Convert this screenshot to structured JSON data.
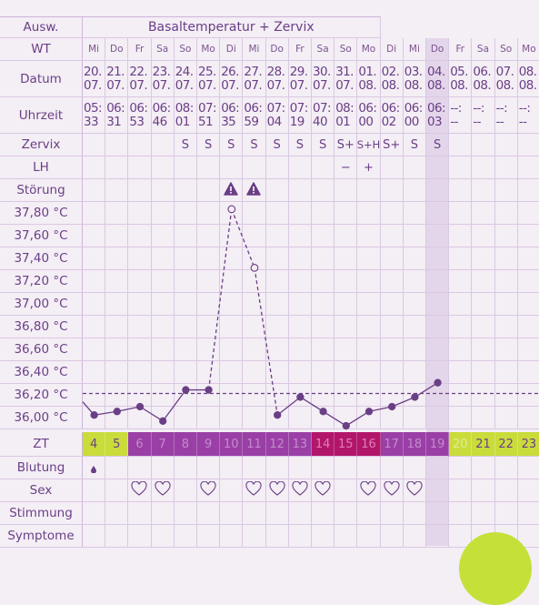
{
  "header": {
    "left_label": "Ausw.",
    "title": "Basaltemperatur + Zervix"
  },
  "rows": {
    "wt": "WT",
    "datum": "Datum",
    "uhrzeit": "Uhrzeit",
    "zervix": "Zervix",
    "lh": "LH",
    "stoerung": "Störung",
    "zt": "ZT",
    "blutung": "Blutung",
    "sex": "Sex",
    "stimmung": "Stimmung",
    "symptome": "Symptome"
  },
  "temp_labels": [
    "37,80 °C",
    "37,60 °C",
    "37,40 °C",
    "37,20 °C",
    "37,00 °C",
    "36,80 °C",
    "36,60 °C",
    "36,40 °C",
    "36,20 °C",
    "36,00 °C"
  ],
  "days": [
    {
      "wt": "Mi",
      "date": [
        "20.",
        "07."
      ],
      "time": [
        "05:",
        "33"
      ],
      "zervix": "",
      "lh": "",
      "warn": false,
      "zt": "4",
      "zt_color": "#c9dc3a",
      "zt_text": "#6a3f86",
      "blood": true,
      "sex": false
    },
    {
      "wt": "Do",
      "date": [
        "21.",
        "07."
      ],
      "time": [
        "06:",
        "31"
      ],
      "zervix": "",
      "lh": "",
      "warn": false,
      "zt": "5",
      "zt_color": "#c9dc3a",
      "zt_text": "#6a3f86",
      "blood": false,
      "sex": false
    },
    {
      "wt": "Fr",
      "date": [
        "22.",
        "07."
      ],
      "time": [
        "06:",
        "53"
      ],
      "zervix": "",
      "lh": "",
      "warn": false,
      "zt": "6",
      "zt_color": "#9a3fa6",
      "zt_text": "#c48ccc",
      "blood": false,
      "sex": true
    },
    {
      "wt": "Sa",
      "date": [
        "23.",
        "07."
      ],
      "time": [
        "06:",
        "46"
      ],
      "zervix": "",
      "lh": "",
      "warn": false,
      "zt": "7",
      "zt_color": "#9a3fa6",
      "zt_text": "#c48ccc",
      "blood": false,
      "sex": true
    },
    {
      "wt": "So",
      "date": [
        "24.",
        "07."
      ],
      "time": [
        "08:",
        "01"
      ],
      "zervix": "S",
      "lh": "",
      "warn": false,
      "zt": "8",
      "zt_color": "#9a3fa6",
      "zt_text": "#c48ccc",
      "blood": false,
      "sex": false
    },
    {
      "wt": "Mo",
      "date": [
        "25.",
        "07."
      ],
      "time": [
        "07:",
        "51"
      ],
      "zervix": "S",
      "lh": "",
      "warn": false,
      "zt": "9",
      "zt_color": "#9a3fa6",
      "zt_text": "#c48ccc",
      "blood": false,
      "sex": true
    },
    {
      "wt": "Di",
      "date": [
        "26.",
        "07."
      ],
      "time": [
        "06:",
        "35"
      ],
      "zervix": "S",
      "lh": "",
      "warn": true,
      "zt": "10",
      "zt_color": "#9a3fa6",
      "zt_text": "#c48ccc",
      "blood": false,
      "sex": false
    },
    {
      "wt": "Mi",
      "date": [
        "27.",
        "07."
      ],
      "time": [
        "06:",
        "59"
      ],
      "zervix": "S",
      "lh": "",
      "warn": true,
      "zt": "11",
      "zt_color": "#9a3fa6",
      "zt_text": "#c48ccc",
      "blood": false,
      "sex": true
    },
    {
      "wt": "Do",
      "date": [
        "28.",
        "07."
      ],
      "time": [
        "07:",
        "04"
      ],
      "zervix": "S",
      "lh": "",
      "warn": false,
      "zt": "12",
      "zt_color": "#9a3fa6",
      "zt_text": "#c48ccc",
      "blood": false,
      "sex": true
    },
    {
      "wt": "Fr",
      "date": [
        "29.",
        "07."
      ],
      "time": [
        "07:",
        "19"
      ],
      "zervix": "S",
      "lh": "",
      "warn": false,
      "zt": "13",
      "zt_color": "#9a3fa6",
      "zt_text": "#c48ccc",
      "blood": false,
      "sex": true
    },
    {
      "wt": "Sa",
      "date": [
        "30.",
        "07."
      ],
      "time": [
        "07:",
        "40"
      ],
      "zervix": "S",
      "lh": "",
      "warn": false,
      "zt": "14",
      "zt_color": "#b1166b",
      "zt_text": "#e07fb2",
      "blood": false,
      "sex": true
    },
    {
      "wt": "So",
      "date": [
        "31.",
        "07."
      ],
      "time": [
        "08:",
        "01"
      ],
      "zervix": "S+",
      "lh": "−",
      "warn": false,
      "zt": "15",
      "zt_color": "#b1166b",
      "zt_text": "#e07fb2",
      "blood": false,
      "sex": false
    },
    {
      "wt": "Mo",
      "date": [
        "01.",
        "08."
      ],
      "time": [
        "06:",
        "00"
      ],
      "zervix": "S+H",
      "lh": "+",
      "warn": false,
      "zt": "16",
      "zt_color": "#b1166b",
      "zt_text": "#e07fb2",
      "blood": false,
      "sex": true
    },
    {
      "wt": "Di",
      "date": [
        "02.",
        "08."
      ],
      "time": [
        "06:",
        "02"
      ],
      "zervix": "S+",
      "lh": "",
      "warn": false,
      "zt": "17",
      "zt_color": "#9a3fa6",
      "zt_text": "#c48ccc",
      "blood": false,
      "sex": true
    },
    {
      "wt": "Mi",
      "date": [
        "03.",
        "08."
      ],
      "time": [
        "06:",
        "00"
      ],
      "zervix": "S",
      "lh": "",
      "warn": false,
      "zt": "18",
      "zt_color": "#9a3fa6",
      "zt_text": "#c48ccc",
      "blood": false,
      "sex": true
    },
    {
      "wt": "Do",
      "date": [
        "04.",
        "08."
      ],
      "time": [
        "06:",
        "03"
      ],
      "zervix": "S",
      "lh": "",
      "warn": false,
      "zt": "19",
      "zt_color": "#9a3fa6",
      "zt_text": "#c48ccc",
      "blood": false,
      "sex": false
    },
    {
      "wt": "Fr",
      "date": [
        "05.",
        "08."
      ],
      "time": [
        "--:",
        "--"
      ],
      "zervix": "",
      "lh": "",
      "warn": false,
      "zt": "20",
      "zt_color": "#c9dc3a",
      "zt_text": "#e2ea9a",
      "blood": false,
      "sex": false
    },
    {
      "wt": "Sa",
      "date": [
        "06.",
        "08."
      ],
      "time": [
        "--:",
        "--"
      ],
      "zervix": "",
      "lh": "",
      "warn": false,
      "zt": "21",
      "zt_color": "#c9dc3a",
      "zt_text": "#6a3f86",
      "blood": false,
      "sex": false
    },
    {
      "wt": "So",
      "date": [
        "07.",
        "08."
      ],
      "time": [
        "--:",
        "--"
      ],
      "zervix": "",
      "lh": "",
      "warn": false,
      "zt": "22",
      "zt_color": "#c9dc3a",
      "zt_text": "#6a3f86",
      "blood": false,
      "sex": false
    },
    {
      "wt": "Mo",
      "date": [
        "08.",
        "08."
      ],
      "time": [
        "--:",
        "--"
      ],
      "zervix": "",
      "lh": "",
      "warn": false,
      "zt": "23",
      "zt_color": "#c9dc3a",
      "zt_text": "#6a3f86",
      "blood": false,
      "sex": false
    }
  ],
  "chart_data": {
    "type": "line",
    "ylim": [
      35.95,
      37.85
    ],
    "coverline": 36.25,
    "series": [
      {
        "points": [
          [
            0,
            36.07
          ],
          [
            1,
            36.1
          ],
          [
            2,
            36.14
          ],
          [
            3,
            36.02
          ],
          [
            4,
            36.28
          ],
          [
            5,
            36.28
          ],
          [
            6,
            37.79
          ],
          [
            7,
            37.3
          ],
          [
            8,
            36.07
          ],
          [
            9,
            36.22
          ],
          [
            10,
            36.1
          ],
          [
            11,
            35.98
          ],
          [
            12,
            36.1
          ],
          [
            13,
            36.14
          ],
          [
            14,
            36.22
          ],
          [
            15,
            36.34
          ]
        ]
      }
    ],
    "excluded_points": [
      6,
      7
    ],
    "dashed_segments": [
      [
        5,
        6
      ],
      [
        6,
        7
      ],
      [
        7,
        8
      ]
    ]
  },
  "colors": {
    "accent": "#6a3f86",
    "grid": "#d9c8e2",
    "lime": "#c9dc3a",
    "purple": "#9a3fa6",
    "magenta": "#b1166b"
  }
}
